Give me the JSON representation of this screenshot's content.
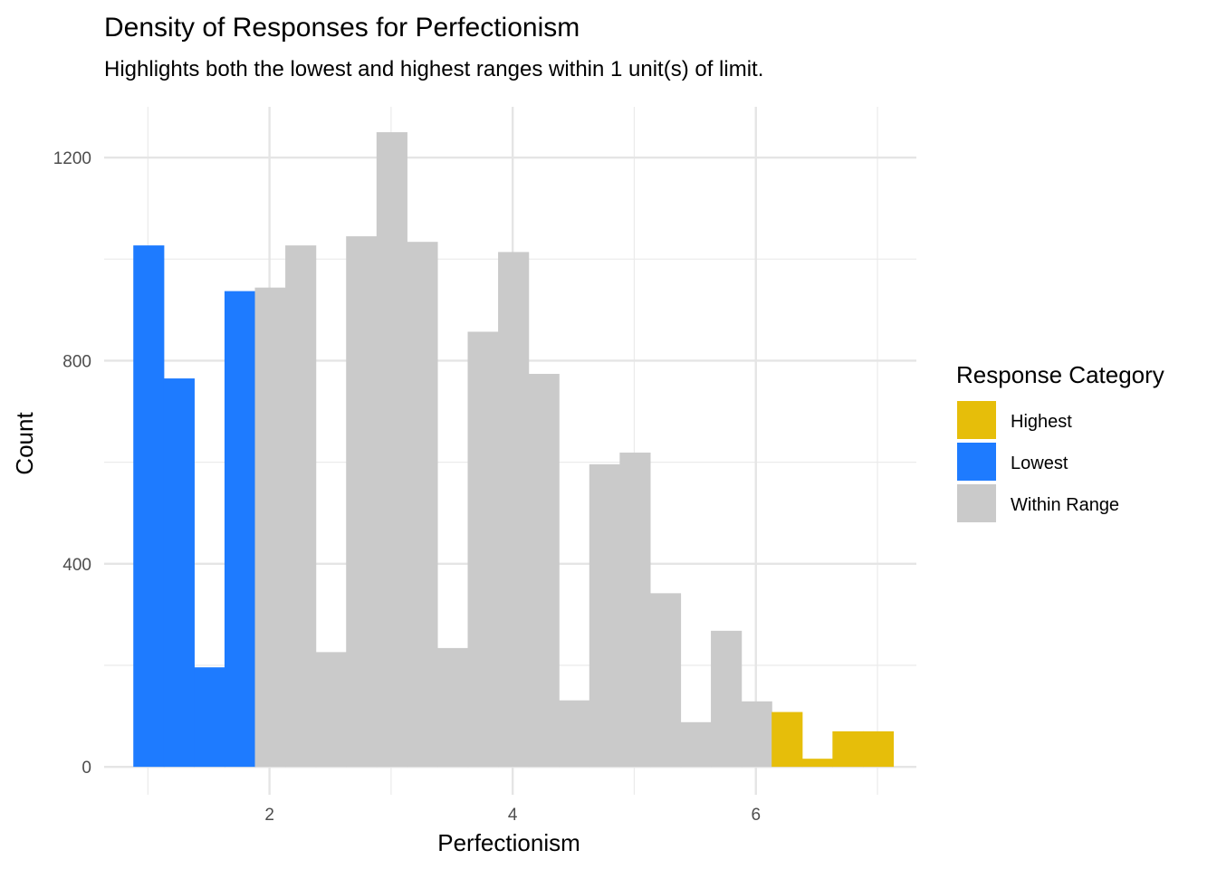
{
  "chart_data": {
    "type": "bar",
    "title": "Density of Responses for Perfectionism",
    "subtitle": "Highlights both the lowest and highest ranges within 1 unit(s) of limit.",
    "xlabel": "Perfectionism",
    "ylabel": "Count",
    "xlim": [
      0.64,
      7.32
    ],
    "ylim": [
      -55,
      1300
    ],
    "x_ticks": [
      2,
      4,
      6
    ],
    "y_ticks": [
      0,
      400,
      800,
      1200
    ],
    "bin_width": 0.25,
    "grid": true,
    "legend": {
      "title": "Response Category",
      "position": "right",
      "entries": [
        {
          "label": "Highest",
          "color": "#E6BE0A"
        },
        {
          "label": "Lowest",
          "color": "#1E7BFF"
        },
        {
          "label": "Within Range",
          "color": "#CACACA"
        }
      ]
    },
    "bins": [
      {
        "start": 0.88,
        "end": 1.13,
        "count": 1027,
        "category": "Lowest"
      },
      {
        "start": 1.13,
        "end": 1.38,
        "count": 765,
        "category": "Lowest"
      },
      {
        "start": 1.38,
        "end": 1.63,
        "count": 196,
        "category": "Lowest"
      },
      {
        "start": 1.63,
        "end": 1.88,
        "count": 937,
        "category": "Lowest"
      },
      {
        "start": 1.88,
        "end": 2.13,
        "count": 944,
        "category": "Within Range"
      },
      {
        "start": 2.13,
        "end": 2.38,
        "count": 1027,
        "category": "Within Range"
      },
      {
        "start": 2.38,
        "end": 2.63,
        "count": 226,
        "category": "Within Range"
      },
      {
        "start": 2.63,
        "end": 2.88,
        "count": 1045,
        "category": "Within Range"
      },
      {
        "start": 2.88,
        "end": 3.13,
        "count": 1250,
        "category": "Within Range"
      },
      {
        "start": 3.13,
        "end": 3.38,
        "count": 1034,
        "category": "Within Range"
      },
      {
        "start": 3.38,
        "end": 3.63,
        "count": 234,
        "category": "Within Range"
      },
      {
        "start": 3.63,
        "end": 3.88,
        "count": 857,
        "category": "Within Range"
      },
      {
        "start": 3.88,
        "end": 4.13,
        "count": 1014,
        "category": "Within Range"
      },
      {
        "start": 4.13,
        "end": 4.38,
        "count": 774,
        "category": "Within Range"
      },
      {
        "start": 4.38,
        "end": 4.63,
        "count": 131,
        "category": "Within Range"
      },
      {
        "start": 4.63,
        "end": 4.88,
        "count": 596,
        "category": "Within Range"
      },
      {
        "start": 4.88,
        "end": 5.13,
        "count": 619,
        "category": "Within Range"
      },
      {
        "start": 5.13,
        "end": 5.38,
        "count": 342,
        "category": "Within Range"
      },
      {
        "start": 5.38,
        "end": 5.63,
        "count": 88,
        "category": "Within Range"
      },
      {
        "start": 5.63,
        "end": 5.88,
        "count": 268,
        "category": "Within Range"
      },
      {
        "start": 5.88,
        "end": 6.13,
        "count": 129,
        "category": "Within Range"
      },
      {
        "start": 6.13,
        "end": 6.38,
        "count": 108,
        "category": "Highest"
      },
      {
        "start": 6.38,
        "end": 6.63,
        "count": 16,
        "category": "Highest"
      },
      {
        "start": 6.63,
        "end": 6.88,
        "count": 70,
        "category": "Highest"
      },
      {
        "start": 6.88,
        "end": 7.13,
        "count": 70,
        "category": "Highest"
      }
    ]
  }
}
